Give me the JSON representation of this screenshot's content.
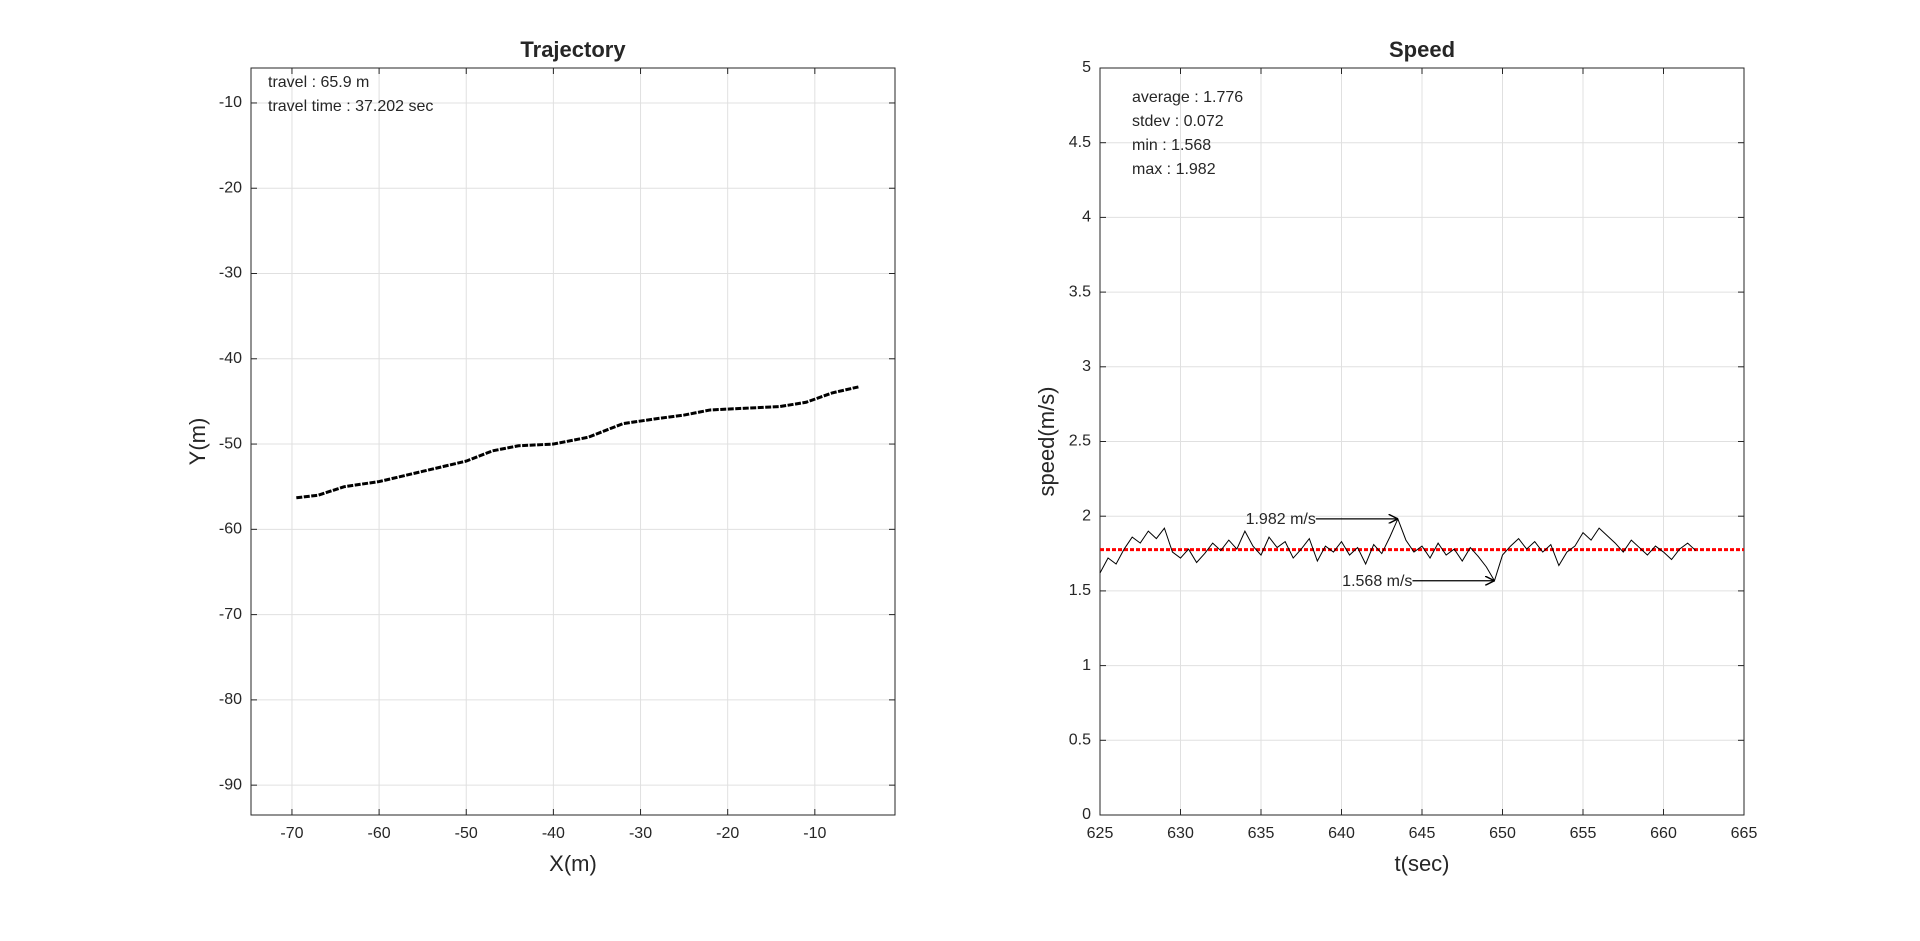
{
  "chart_data": [
    {
      "type": "line",
      "title": "Trajectory",
      "xlabel": "X(m)",
      "ylabel": "Y(m)",
      "xlim": [
        -74.7,
        -0.8
      ],
      "ylim": [
        -93.5,
        -5.9
      ],
      "xticks": [
        -70,
        -60,
        -50,
        -40,
        -30,
        -20,
        -10
      ],
      "yticks": [
        -90,
        -80,
        -70,
        -60,
        -50,
        -40,
        -30,
        -20,
        -10
      ],
      "grid": true,
      "annotations": [
        "travel : 65.9 m",
        "travel time : 37.202 sec"
      ],
      "x": [
        -69.5,
        -67,
        -64,
        -60,
        -55,
        -50,
        -47,
        -44,
        -40,
        -36,
        -32,
        -28,
        -25,
        -22,
        -18,
        -14,
        -11,
        -8,
        -5
      ],
      "series": [
        {
          "color": "#000000",
          "values": [
            -56.3,
            -56,
            -55,
            -54.4,
            -53.2,
            -52,
            -50.8,
            -50.2,
            -50,
            -49.2,
            -47.6,
            -47,
            -46.6,
            -46,
            -45.8,
            -45.6,
            -45.1,
            -44,
            -43.3
          ]
        }
      ]
    },
    {
      "type": "line",
      "title": "Speed",
      "xlabel": "t(sec)",
      "ylabel": "speed(m/s)",
      "xlim": [
        625,
        665
      ],
      "ylim": [
        0,
        5
      ],
      "xticks": [
        625,
        630,
        635,
        640,
        645,
        650,
        655,
        660,
        665
      ],
      "yticks": [
        0,
        0.5,
        1,
        1.5,
        2,
        2.5,
        3,
        3.5,
        4,
        4.5,
        5
      ],
      "grid": true,
      "annotations": [
        "average : 1.776",
        "stdev : 0.072",
        "min : 1.568",
        "max : 1.982"
      ],
      "reference_line": {
        "value": 1.776,
        "color": "#ff0000"
      },
      "arrows": [
        {
          "label": "1.982 m/s",
          "x": 643.5,
          "y": 1.982
        },
        {
          "label": "1.568 m/s",
          "x": 649.5,
          "y": 1.568
        }
      ],
      "x": [
        625,
        625.5,
        626,
        626.5,
        627,
        627.5,
        628,
        628.5,
        629,
        629.5,
        630,
        630.5,
        631,
        631.5,
        632,
        632.5,
        633,
        633.5,
        634,
        634.5,
        635,
        635.5,
        636,
        636.5,
        637,
        637.5,
        638,
        638.5,
        639,
        639.5,
        640,
        640.5,
        641,
        641.5,
        642,
        642.5,
        643,
        643.5,
        644,
        644.5,
        645,
        645.5,
        646,
        646.5,
        647,
        647.5,
        648,
        648.5,
        649,
        649.5,
        650,
        650.5,
        651,
        651.5,
        652,
        652.5,
        653,
        653.5,
        654,
        654.5,
        655,
        655.5,
        656,
        656.5,
        657,
        657.5,
        658,
        658.5,
        659,
        659.5,
        660,
        660.5,
        661,
        661.5,
        662
      ],
      "series": [
        {
          "color": "#000000",
          "values": [
            1.62,
            1.72,
            1.68,
            1.78,
            1.86,
            1.82,
            1.9,
            1.85,
            1.92,
            1.76,
            1.72,
            1.78,
            1.69,
            1.75,
            1.82,
            1.77,
            1.84,
            1.78,
            1.9,
            1.8,
            1.74,
            1.86,
            1.79,
            1.83,
            1.72,
            1.78,
            1.85,
            1.7,
            1.8,
            1.76,
            1.83,
            1.74,
            1.79,
            1.68,
            1.81,
            1.75,
            1.86,
            1.982,
            1.84,
            1.76,
            1.8,
            1.72,
            1.82,
            1.74,
            1.78,
            1.7,
            1.79,
            1.73,
            1.66,
            1.568,
            1.74,
            1.8,
            1.85,
            1.78,
            1.83,
            1.76,
            1.81,
            1.67,
            1.76,
            1.8,
            1.89,
            1.84,
            1.92,
            1.87,
            1.82,
            1.76,
            1.84,
            1.79,
            1.74,
            1.8,
            1.76,
            1.71,
            1.78,
            1.82,
            1.77
          ]
        }
      ]
    }
  ]
}
